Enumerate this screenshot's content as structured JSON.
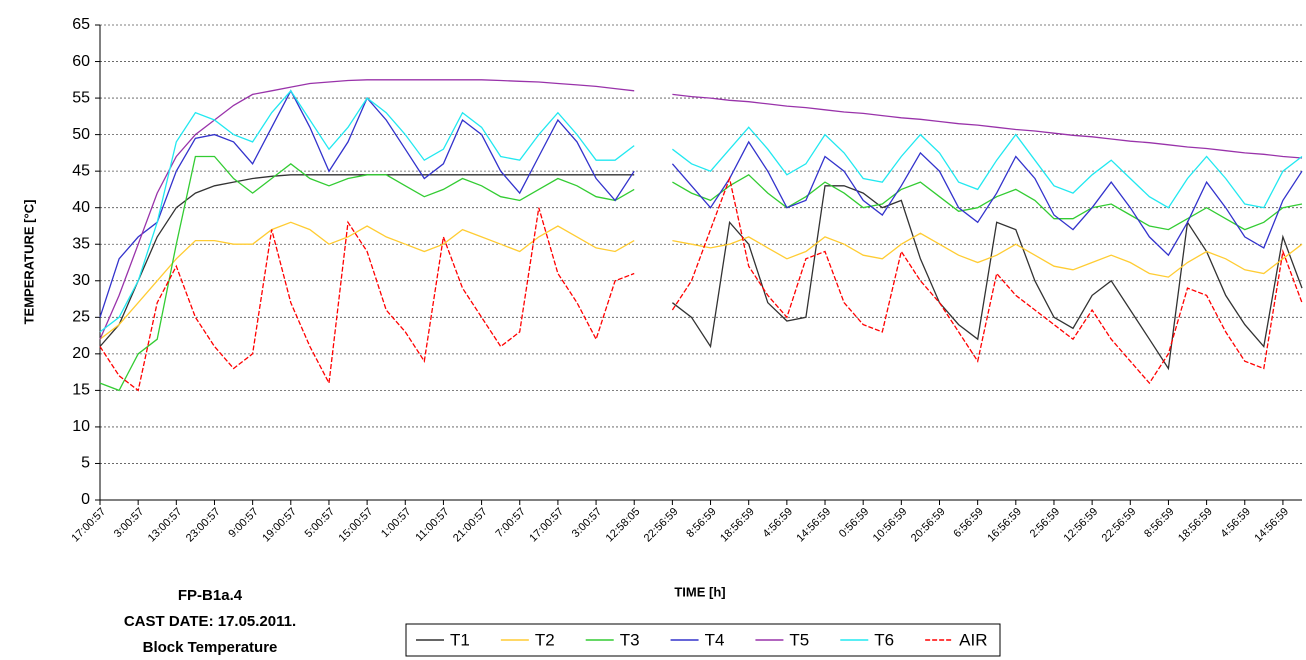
{
  "chart_data": {
    "type": "line",
    "ylabel": "TEMPERATURE [°C]",
    "xlabel": "TIME [h]",
    "annotations": [
      "FP-B1a.4",
      "CAST DATE: 17.05.2011.",
      "Block Temperature"
    ],
    "categories": [
      "17:00:57",
      null,
      "3:00:57",
      null,
      "13:00:57",
      null,
      "23:00:57",
      null,
      "9:00:57",
      null,
      "19:00:57",
      null,
      "5:00:57",
      null,
      "15:00:57",
      null,
      "1:00:57",
      null,
      "11:00:57",
      null,
      "21:00:57",
      null,
      "7:00:57",
      null,
      "17:00:57",
      null,
      "3:00:57",
      null,
      "12:58:05",
      null,
      "22:56:59",
      null,
      "8:56:59",
      null,
      "18:56:59",
      null,
      "4:56:59",
      null,
      "14:56:59",
      null,
      "0:56:59",
      null,
      "10:56:59",
      null,
      "20:56:59",
      null,
      "6:56:59",
      null,
      "16:56:59",
      null,
      "2:56:59",
      null,
      "12:56:59",
      null,
      "22:56:59",
      null,
      "8:56:59",
      null,
      "18:56:59",
      null,
      "4:56:59",
      null,
      "14:56:59",
      null
    ],
    "ylim": [
      0,
      65
    ],
    "yticks": [
      0,
      5,
      10,
      15,
      20,
      25,
      30,
      35,
      40,
      45,
      50,
      55,
      60,
      65
    ],
    "grid": true,
    "legend": "bottom",
    "series": [
      {
        "name": "T1",
        "color": "#333333",
        "style": "solid",
        "values": [
          21,
          24,
          30,
          36,
          40,
          42,
          43,
          43.5,
          44,
          44.3,
          44.5,
          44.5,
          44.5,
          44.5,
          44.5,
          44.5,
          44.5,
          44.5,
          44.5,
          44.5,
          44.5,
          44.5,
          44.5,
          44.5,
          44.5,
          44.5,
          44.5,
          44.5,
          44.5,
          null,
          27,
          25,
          21,
          38,
          35,
          27,
          24.5,
          25,
          43,
          43,
          42,
          40,
          41,
          33,
          27,
          24,
          22,
          38,
          37,
          30,
          25,
          23.5,
          28,
          30,
          26,
          22,
          18,
          38,
          34,
          28,
          24,
          21,
          36,
          29
        ]
      },
      {
        "name": "T2",
        "color": "#ffcc33",
        "style": "solid",
        "values": [
          22,
          24,
          27,
          30,
          33,
          35.5,
          35.5,
          35,
          35,
          37,
          38,
          37,
          35,
          36,
          37.5,
          36,
          35,
          34,
          35,
          37,
          36,
          35,
          34,
          36,
          37.5,
          36,
          34.5,
          34,
          35.5,
          null,
          35.5,
          35,
          34.5,
          35,
          36,
          34.5,
          33,
          34,
          36,
          35,
          33.5,
          33,
          35,
          36.5,
          35,
          33.5,
          32.5,
          33.5,
          35,
          33.5,
          32,
          31.5,
          32.5,
          33.5,
          32.5,
          31,
          30.5,
          32.5,
          34,
          33,
          31.5,
          31,
          33,
          35
        ]
      },
      {
        "name": "T3",
        "color": "#33cc33",
        "style": "solid",
        "values": [
          16,
          15,
          20,
          22,
          35,
          47,
          47,
          44,
          42,
          44,
          46,
          44,
          43,
          44,
          44.5,
          44.5,
          43,
          41.5,
          42.5,
          44,
          43,
          41.5,
          41,
          42.5,
          44,
          43,
          41.5,
          41,
          42.5,
          null,
          43.5,
          42,
          41,
          43,
          44.5,
          42,
          40,
          41.5,
          43.5,
          42,
          40,
          40.5,
          42.5,
          43.5,
          41.5,
          39.5,
          40,
          41.5,
          42.5,
          41,
          38.5,
          38.5,
          40,
          40.5,
          39,
          37.5,
          37,
          38.5,
          40,
          38.5,
          37,
          38,
          40,
          40.5
        ]
      },
      {
        "name": "T4",
        "color": "#3333cc",
        "style": "solid",
        "values": [
          25,
          33,
          36,
          38,
          45,
          49.5,
          50,
          49,
          46,
          51,
          56,
          51,
          45,
          49,
          55,
          52,
          48,
          44,
          46,
          52,
          50,
          45,
          42,
          47,
          52,
          49,
          44,
          41,
          45,
          null,
          46,
          43,
          40,
          44,
          49,
          45,
          40,
          41,
          47,
          45,
          41,
          39,
          43,
          47.5,
          45,
          40,
          38,
          42,
          47,
          44,
          39,
          37,
          40,
          43.5,
          40,
          36,
          33.5,
          38,
          43.5,
          40,
          36,
          34.5,
          41,
          45
        ]
      },
      {
        "name": "T5",
        "color": "#9933aa",
        "style": "solid",
        "values": [
          22,
          28,
          35,
          42,
          47,
          50,
          52,
          54,
          55.5,
          56,
          56.5,
          57,
          57.2,
          57.4,
          57.5,
          57.5,
          57.5,
          57.5,
          57.5,
          57.5,
          57.5,
          57.4,
          57.3,
          57.2,
          57,
          56.8,
          56.6,
          56.3,
          56,
          null,
          55.5,
          55.2,
          55,
          54.7,
          54.5,
          54.2,
          53.9,
          53.7,
          53.4,
          53.1,
          52.9,
          52.6,
          52.3,
          52.1,
          51.8,
          51.5,
          51.3,
          51,
          50.7,
          50.5,
          50.2,
          49.9,
          49.7,
          49.4,
          49.1,
          48.9,
          48.6,
          48.3,
          48.1,
          47.8,
          47.5,
          47.3,
          47,
          46.8
        ]
      },
      {
        "name": "T6",
        "color": "#22e8f0",
        "style": "solid",
        "values": [
          23,
          25,
          30,
          38,
          49,
          53,
          52,
          50,
          49,
          53,
          56,
          52,
          48,
          51,
          55,
          53,
          50,
          46.5,
          48,
          53,
          51,
          47,
          46.5,
          50,
          53,
          50,
          46.5,
          46.5,
          48.5,
          null,
          48,
          46,
          45,
          48,
          51,
          48,
          44.5,
          46,
          50,
          47.5,
          44,
          43.5,
          47,
          50,
          47.5,
          43.5,
          42.5,
          46.5,
          50,
          46.5,
          43,
          42,
          44.5,
          46.5,
          44,
          41.5,
          40,
          44,
          47,
          44,
          40.5,
          40,
          45,
          47
        ]
      },
      {
        "name": "AIR",
        "color": "#ff0000",
        "style": "dashed",
        "values": [
          21,
          17,
          15,
          27,
          32,
          25,
          21,
          18,
          20,
          37,
          27,
          21,
          16,
          38,
          34,
          26,
          23,
          19,
          36,
          29,
          25,
          21,
          23,
          40,
          31,
          27,
          22,
          30,
          31,
          null,
          26,
          30,
          37,
          44,
          32,
          28,
          25,
          33,
          34,
          27,
          24,
          23,
          34,
          30,
          27,
          23,
          19,
          31,
          28,
          26,
          24,
          22,
          26,
          22,
          19,
          16,
          20,
          29,
          28,
          23,
          19,
          18,
          34,
          27
        ]
      }
    ]
  }
}
